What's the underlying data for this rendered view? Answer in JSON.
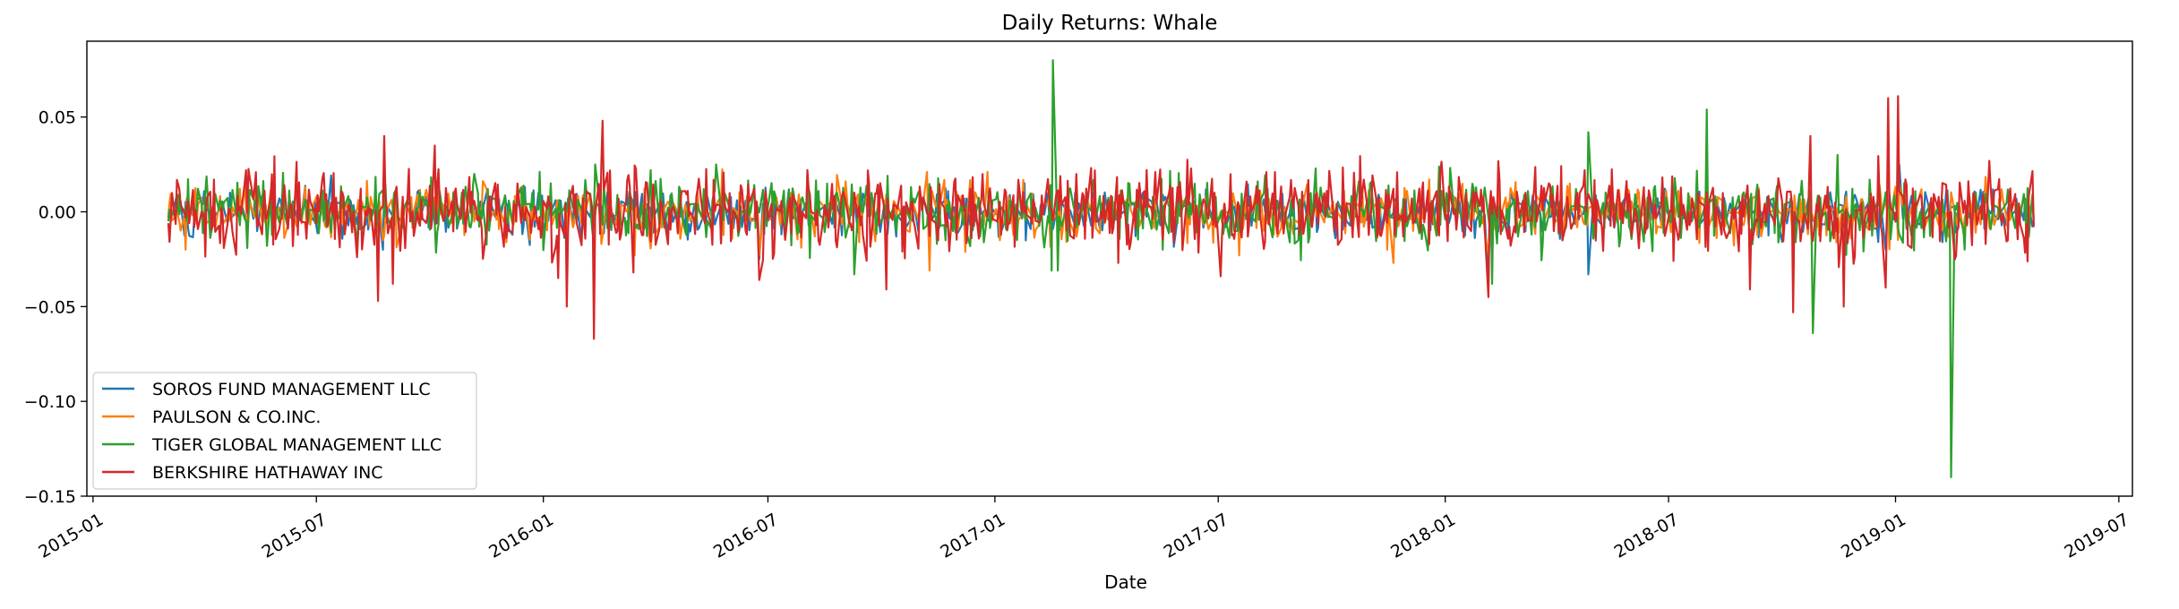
{
  "chart_data": {
    "type": "line",
    "title": "Daily Returns: Whale",
    "xlabel": "Date",
    "ylabel": "",
    "ylim": [
      -0.15,
      0.09
    ],
    "xlim": [
      "2014-12-27",
      "2019-07-12"
    ],
    "x_start": "2015-03-03",
    "x_end": "2019-04-23",
    "yticks": [
      -0.15,
      -0.1,
      -0.05,
      0.0,
      0.05
    ],
    "ytick_labels": [
      "−0.15",
      "−0.10",
      "−0.05",
      "0.00",
      "0.05"
    ],
    "xticks": [
      "2015-01-01",
      "2015-07-01",
      "2016-01-01",
      "2016-07-01",
      "2017-01-01",
      "2017-07-01",
      "2018-01-01",
      "2018-07-01",
      "2019-01-01",
      "2019-07-01"
    ],
    "xtick_labels": [
      "2015-01",
      "2015-07",
      "2016-01",
      "2016-07",
      "2017-01",
      "2017-07",
      "2018-01",
      "2018-07",
      "2019-01",
      "2019-07"
    ],
    "grid": false,
    "legend_position": "lower-left",
    "series": [
      {
        "name": "SOROS FUND MANAGEMENT LLC",
        "color": "#1f77b4",
        "points": [
          [
            "2015-03-03",
            -0.003
          ],
          [
            "2015-05-01",
            0.005
          ],
          [
            "2015-08-24",
            -0.02
          ],
          [
            "2015-08-25",
            0.015
          ],
          [
            "2016-01-20",
            -0.025
          ],
          [
            "2016-06-24",
            -0.025
          ],
          [
            "2017-01-25",
            0.015
          ],
          [
            "2018-02-05",
            -0.04
          ],
          [
            "2018-02-08",
            -0.03
          ],
          [
            "2018-04-27",
            -0.033
          ],
          [
            "2018-10-10",
            -0.03
          ],
          [
            "2018-12-24",
            -0.02
          ],
          [
            "2019-01-04",
            0.025
          ],
          [
            "2019-04-23",
            -0.006
          ]
        ],
        "noise_amplitude": 0.006
      },
      {
        "name": "PAULSON & CO.INC.",
        "color": "#ff7f0e",
        "points": [
          [
            "2015-03-03",
            -0.002
          ],
          [
            "2015-08-24",
            -0.015
          ],
          [
            "2016-01-20",
            -0.02
          ],
          [
            "2016-03-15",
            -0.023
          ],
          [
            "2016-06-24",
            -0.023
          ],
          [
            "2016-11-09",
            -0.031
          ],
          [
            "2017-01-05",
            -0.015
          ],
          [
            "2017-07-18",
            -0.023
          ],
          [
            "2017-11-15",
            -0.02
          ],
          [
            "2017-11-20",
            -0.027
          ],
          [
            "2018-02-05",
            -0.022
          ],
          [
            "2018-10-10",
            -0.018
          ],
          [
            "2019-01-04",
            0.015
          ],
          [
            "2019-04-23",
            -0.004
          ]
        ],
        "noise_amplitude": 0.007
      },
      {
        "name": "TIGER GLOBAL MANAGEMENT LLC",
        "color": "#2ca02c",
        "points": [
          [
            "2015-03-03",
            -0.005
          ],
          [
            "2015-11-06",
            0.02
          ],
          [
            "2016-02-12",
            0.025
          ],
          [
            "2016-05-20",
            0.025
          ],
          [
            "2016-09-09",
            -0.033
          ],
          [
            "2017-02-16",
            -0.031
          ],
          [
            "2017-02-17",
            0.08
          ],
          [
            "2017-02-21",
            -0.031
          ],
          [
            "2017-05-17",
            -0.02
          ],
          [
            "2018-02-08",
            -0.038
          ],
          [
            "2018-04-27",
            0.042
          ],
          [
            "2018-08-01",
            0.054
          ],
          [
            "2018-10-26",
            -0.064
          ],
          [
            "2018-11-15",
            0.03
          ],
          [
            "2019-02-15",
            -0.14
          ],
          [
            "2019-02-26",
            -0.02
          ],
          [
            "2019-04-23",
            -0.007
          ]
        ],
        "noise_amplitude": 0.008
      },
      {
        "name": "BERKSHIRE HATHAWAY INC",
        "color": "#d62728",
        "points": [
          [
            "2015-03-03",
            -0.006
          ],
          [
            "2015-08-20",
            -0.047
          ],
          [
            "2015-08-25",
            0.04
          ],
          [
            "2015-09-01",
            -0.038
          ],
          [
            "2015-10-05",
            0.035
          ],
          [
            "2016-01-13",
            -0.035
          ],
          [
            "2016-01-20",
            -0.05
          ],
          [
            "2016-02-11",
            -0.067
          ],
          [
            "2016-02-18",
            0.048
          ],
          [
            "2016-06-24",
            -0.036
          ],
          [
            "2016-10-05",
            -0.041
          ],
          [
            "2017-04-11",
            -0.027
          ],
          [
            "2017-07-03",
            -0.034
          ],
          [
            "2018-02-05",
            -0.045
          ],
          [
            "2018-09-05",
            -0.041
          ],
          [
            "2018-10-10",
            -0.053
          ],
          [
            "2018-10-24",
            0.04
          ],
          [
            "2018-11-20",
            -0.05
          ],
          [
            "2018-12-24",
            -0.04
          ],
          [
            "2018-12-26",
            0.06
          ],
          [
            "2019-01-03",
            0.061
          ],
          [
            "2019-04-23",
            -0.008
          ]
        ],
        "noise_amplitude": 0.011
      }
    ]
  }
}
